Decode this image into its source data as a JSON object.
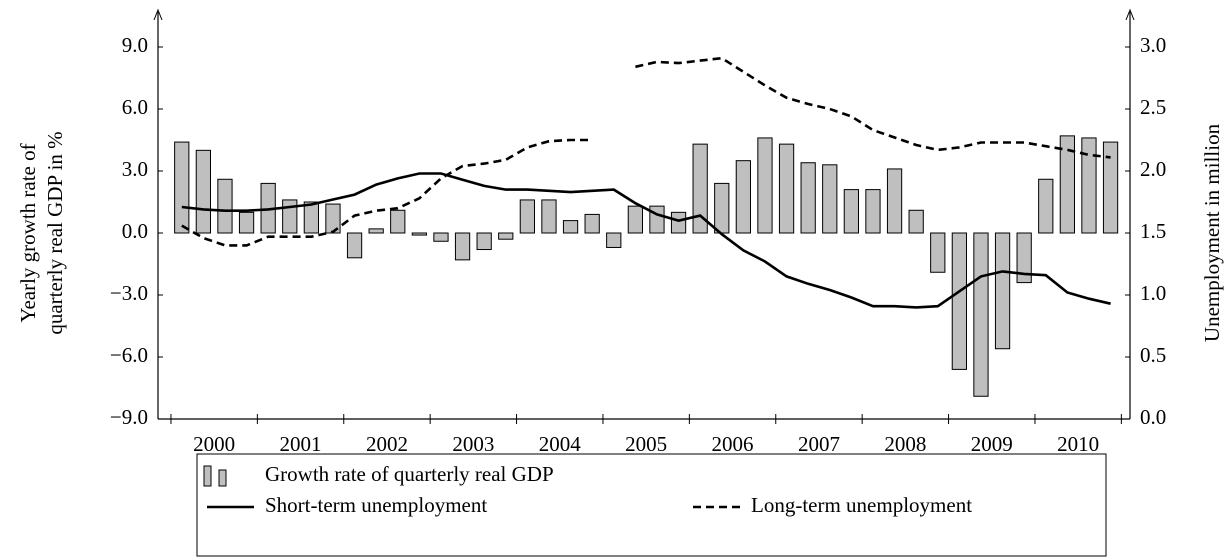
{
  "chart_data": {
    "type": "bar",
    "ylabel": [
      "Yearly growth rate of",
      "quarterly real GDP in %"
    ],
    "y2label": "Unemployment in million",
    "x": [
      2000.125,
      2000.375,
      2000.625,
      2000.875,
      2001.125,
      2001.375,
      2001.625,
      2001.875,
      2002.125,
      2002.375,
      2002.625,
      2002.875,
      2003.125,
      2003.375,
      2003.625,
      2003.875,
      2004.125,
      2004.375,
      2004.625,
      2004.875,
      2005.125,
      2005.375,
      2005.625,
      2005.875,
      2006.125,
      2006.375,
      2006.625,
      2006.875,
      2007.125,
      2007.375,
      2007.625,
      2007.875,
      2008.125,
      2008.375,
      2008.625,
      2008.875,
      2009.125,
      2009.375,
      2009.625,
      2009.875,
      2010.125,
      2010.375,
      2010.625,
      2010.875
    ],
    "xlim": [
      1999.85,
      2011.1
    ],
    "xticks": [
      {
        "value": 2000.5,
        "label": "2000"
      },
      {
        "value": 2001.5,
        "label": "2001"
      },
      {
        "value": 2002.5,
        "label": "2002"
      },
      {
        "value": 2003.5,
        "label": "2003"
      },
      {
        "value": 2004.5,
        "label": "2004"
      },
      {
        "value": 2005.5,
        "label": "2005"
      },
      {
        "value": 2006.5,
        "label": "2006"
      },
      {
        "value": 2007.5,
        "label": "2007"
      },
      {
        "value": 2008.5,
        "label": "2008"
      },
      {
        "value": 2009.5,
        "label": "2009"
      },
      {
        "value": 2010.5,
        "label": "2010"
      }
    ],
    "xminorticks": [
      2000,
      2001,
      2002,
      2003,
      2004,
      2005,
      2006,
      2007,
      2008,
      2009,
      2010,
      2011
    ],
    "ylim": [
      -9,
      9
    ],
    "yticks": [
      {
        "value": -9,
        "label": "−9.0"
      },
      {
        "value": -6,
        "label": "−6.0"
      },
      {
        "value": -3,
        "label": "−3.0"
      },
      {
        "value": 0,
        "label": "0.0"
      },
      {
        "value": 3,
        "label": "3.0"
      },
      {
        "value": 6,
        "label": "6.0"
      },
      {
        "value": 9,
        "label": "9.0"
      }
    ],
    "y2lim": [
      0,
      3
    ],
    "y2ticks": [
      {
        "value": 0,
        "label": "0.0"
      },
      0.5,
      {
        "value": 1,
        "label": "1.0"
      },
      1.5,
      {
        "value": 2,
        "label": "2.0"
      },
      2.5,
      {
        "value": 3,
        "label": "3.0"
      }
    ],
    "series": [
      {
        "name": "Growth rate of quarterly real GDP",
        "type": "bar",
        "color": "#bfbfbf",
        "values": [
          4.4,
          4.0,
          2.6,
          1.0,
          2.4,
          1.6,
          1.5,
          1.4,
          -1.2,
          0.2,
          1.1,
          -0.1,
          -0.4,
          -1.3,
          -0.8,
          -0.3,
          1.6,
          1.6,
          0.6,
          0.9,
          -0.7,
          1.3,
          1.3,
          1.0,
          4.3,
          2.4,
          3.5,
          4.6,
          4.3,
          3.4,
          3.3,
          2.1,
          2.1,
          3.1,
          1.1,
          -1.9,
          -6.6,
          -7.9,
          -5.6,
          -2.4,
          2.6,
          4.7,
          4.6,
          4.4
        ]
      },
      {
        "name": "Short-term unemployment",
        "type": "line",
        "axis": "y2",
        "color": "#000000",
        "style": "solid",
        "values": [
          1.71,
          1.69,
          1.68,
          1.68,
          1.69,
          1.71,
          1.73,
          1.77,
          1.81,
          1.89,
          1.94,
          1.98,
          1.98,
          1.93,
          1.88,
          1.85,
          1.85,
          1.84,
          1.83,
          1.84,
          1.85,
          1.74,
          1.65,
          1.6,
          1.64,
          1.49,
          1.36,
          1.27,
          1.15,
          1.09,
          1.04,
          0.98,
          0.91,
          0.91,
          0.9,
          0.91,
          1.03,
          1.15,
          1.19,
          1.17,
          1.16,
          1.02,
          0.97,
          0.93
        ]
      },
      {
        "name": "Long-term unemployment",
        "type": "line",
        "axis": "y2",
        "color": "#000000",
        "style": "dashed",
        "values": [
          1.56,
          1.46,
          1.4,
          1.4,
          1.47,
          1.47,
          1.47,
          1.51,
          1.64,
          1.68,
          1.7,
          1.78,
          1.94,
          2.04,
          2.06,
          2.09,
          2.19,
          2.24,
          2.25,
          2.25,
          null,
          2.84,
          2.88,
          2.87,
          2.89,
          2.91,
          2.8,
          2.69,
          2.59,
          2.54,
          2.5,
          2.44,
          2.33,
          2.27,
          2.21,
          2.17,
          2.19,
          2.23,
          2.23,
          2.23,
          2.2,
          2.17,
          2.13,
          2.11
        ]
      }
    ]
  }
}
